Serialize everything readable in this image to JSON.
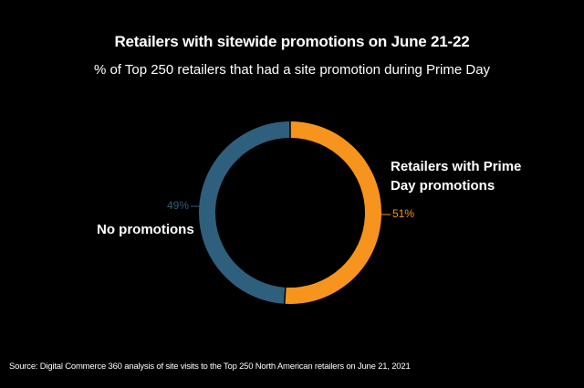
{
  "chart_data": {
    "type": "pie",
    "title": "Retailers with sitewide promotions on June 21-22",
    "subtitle": "% of  Top 250 retailers that had a site promotion during Prime Day",
    "slices": [
      {
        "label": "Retailers with Prime Day promotions",
        "value": 51,
        "value_label": "51%",
        "color": "#f7941d"
      },
      {
        "label": "No promotions",
        "value": 49,
        "value_label": "49%",
        "color": "#2e5f7d"
      }
    ],
    "source": "Source: Digital Commerce 360 analysis of site visits to the Top 250 North American retailers on June 21, 2021"
  }
}
